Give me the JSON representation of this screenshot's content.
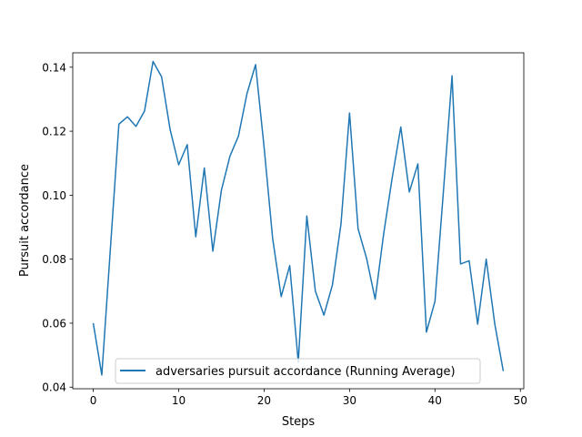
{
  "colors": {
    "series": "#1f77b4",
    "axes": "#000000",
    "legend_border": "#cccccc",
    "background": "#ffffff"
  },
  "chart_data": {
    "type": "line",
    "title": "",
    "xlabel": "Steps",
    "ylabel": "Pursuit accordance",
    "xlim": [
      -2.4,
      50.4
    ],
    "ylim": [
      0.0395,
      0.1445
    ],
    "x_ticks": [
      0,
      10,
      20,
      30,
      40,
      50
    ],
    "y_ticks": [
      0.04,
      0.06,
      0.08,
      0.1,
      0.12,
      0.14
    ],
    "x_tick_labels": [
      "0",
      "10",
      "20",
      "30",
      "40",
      "50"
    ],
    "y_tick_labels": [
      "0.04",
      "0.06",
      "0.08",
      "0.10",
      "0.12",
      "0.14"
    ],
    "grid": false,
    "legend_position": "lower center",
    "series": [
      {
        "name": "adversaries pursuit accordance (Running Average)",
        "x": [
          0,
          1,
          2,
          3,
          4,
          5,
          6,
          7,
          8,
          9,
          10,
          11,
          12,
          13,
          14,
          15,
          16,
          17,
          18,
          19,
          20,
          21,
          22,
          23,
          24,
          25,
          26,
          27,
          28,
          29,
          30,
          31,
          32,
          33,
          34,
          35,
          36,
          37,
          38,
          39,
          40,
          41,
          42,
          43,
          44,
          45,
          46,
          47,
          48
        ],
        "y": [
          0.06,
          0.0438,
          0.083,
          0.1222,
          0.1245,
          0.1215,
          0.1263,
          0.1418,
          0.137,
          0.1205,
          0.1095,
          0.1158,
          0.087,
          0.1085,
          0.0825,
          0.1015,
          0.1122,
          0.1185,
          0.1318,
          0.1408,
          0.115,
          0.0865,
          0.0683,
          0.078,
          0.0478,
          0.0935,
          0.07,
          0.0625,
          0.072,
          0.091,
          0.1257,
          0.0895,
          0.0802,
          0.0675,
          0.088,
          0.1055,
          0.1213,
          0.101,
          0.1098,
          0.0572,
          0.0668,
          0.1015,
          0.1373,
          0.0785,
          0.0795,
          0.0597,
          0.08,
          0.0598,
          0.045
        ]
      }
    ]
  }
}
